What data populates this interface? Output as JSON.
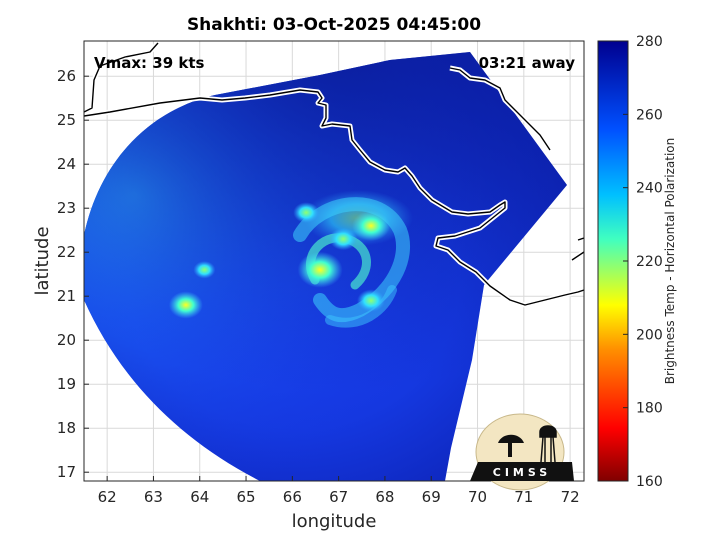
{
  "chart_data": {
    "type": "heatmap",
    "title": "Shakhti: 03-Oct-2025 04:45:00",
    "xlabel": "longitude",
    "ylabel": "latitude",
    "xlim": [
      61.5,
      72.3
    ],
    "ylim": [
      16.8,
      26.8
    ],
    "xticks": [
      62,
      63,
      64,
      65,
      66,
      67,
      68,
      69,
      70,
      71,
      72
    ],
    "yticks": [
      17,
      18,
      19,
      20,
      21,
      22,
      23,
      24,
      25,
      26
    ],
    "grid": true,
    "annotations": {
      "vmax": "Vmax: 39 kts",
      "time_away": "03:21 away"
    },
    "colorbar": {
      "label": "Brightness Temp - Horizontal Polarization",
      "range": [
        160,
        280
      ],
      "ticks": [
        160,
        180,
        200,
        220,
        240,
        260,
        280
      ],
      "colormap": "jet",
      "position": "right"
    },
    "storm_center": {
      "lon": 66.9,
      "lat": 21.7
    },
    "swath_background_temp": 264,
    "convective_features": [
      {
        "lon": 67.7,
        "lat": 22.6,
        "temp": 222
      },
      {
        "lon": 66.6,
        "lat": 21.6,
        "temp": 215
      },
      {
        "lon": 67.1,
        "lat": 22.3,
        "temp": 232
      },
      {
        "lon": 66.3,
        "lat": 22.9,
        "temp": 234
      },
      {
        "lon": 67.7,
        "lat": 20.9,
        "temp": 232
      },
      {
        "lon": 63.7,
        "lat": 20.8,
        "temp": 226
      },
      {
        "lon": 64.1,
        "lat": 21.6,
        "temp": 238
      }
    ]
  },
  "logo": {
    "text": "CIMSS"
  },
  "colors": {
    "coastline": "#000000",
    "grid": "#d9d9d9",
    "background": "#ffffff"
  }
}
